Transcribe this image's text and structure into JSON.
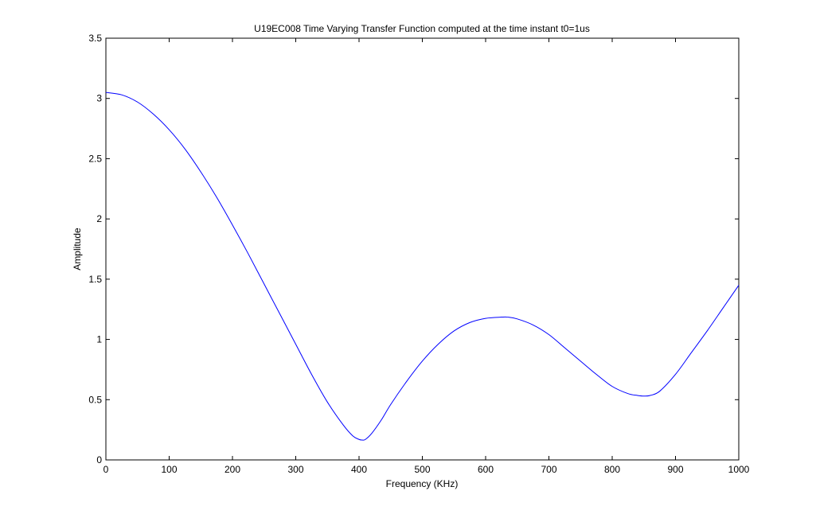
{
  "chart_data": {
    "type": "line",
    "title": "U19EC008 Time Varying Transfer Function computed at the time instant t0=1us",
    "xlabel": "Frequency (KHz)",
    "ylabel": "Amplitude",
    "xlim": [
      0,
      1000
    ],
    "ylim": [
      0,
      3.5
    ],
    "xticks": [
      0,
      100,
      200,
      300,
      400,
      500,
      600,
      700,
      800,
      900,
      1000
    ],
    "xtick_labels": [
      "0",
      "100",
      "200",
      "300",
      "400",
      "500",
      "600",
      "700",
      "800",
      "900",
      "1000"
    ],
    "yticks": [
      0,
      0.5,
      1,
      1.5,
      2,
      2.5,
      3,
      3.5
    ],
    "ytick_labels": [
      "0",
      "0.5",
      "1",
      "1.5",
      "2",
      "2.5",
      "3",
      "3.5"
    ],
    "grid": false,
    "line_color": "#0000ff",
    "series": [
      {
        "x": [
          0,
          25,
          50,
          75,
          100,
          125,
          150,
          175,
          200,
          225,
          250,
          275,
          300,
          325,
          350,
          375,
          390,
          400,
          405,
          410,
          420,
          435,
          450,
          475,
          500,
          525,
          550,
          575,
          600,
          625,
          635,
          650,
          675,
          700,
          725,
          750,
          775,
          800,
          825,
          840,
          850,
          860,
          875,
          900,
          925,
          950,
          975,
          1000
        ],
        "y": [
          3.05,
          3.03,
          2.97,
          2.87,
          2.74,
          2.58,
          2.39,
          2.18,
          1.95,
          1.71,
          1.46,
          1.21,
          0.96,
          0.71,
          0.48,
          0.29,
          0.2,
          0.17,
          0.165,
          0.17,
          0.22,
          0.33,
          0.46,
          0.65,
          0.82,
          0.96,
          1.07,
          1.14,
          1.175,
          1.185,
          1.185,
          1.17,
          1.12,
          1.04,
          0.93,
          0.82,
          0.71,
          0.61,
          0.55,
          0.535,
          0.53,
          0.535,
          0.57,
          0.71,
          0.89,
          1.07,
          1.26,
          1.45
        ]
      }
    ]
  }
}
